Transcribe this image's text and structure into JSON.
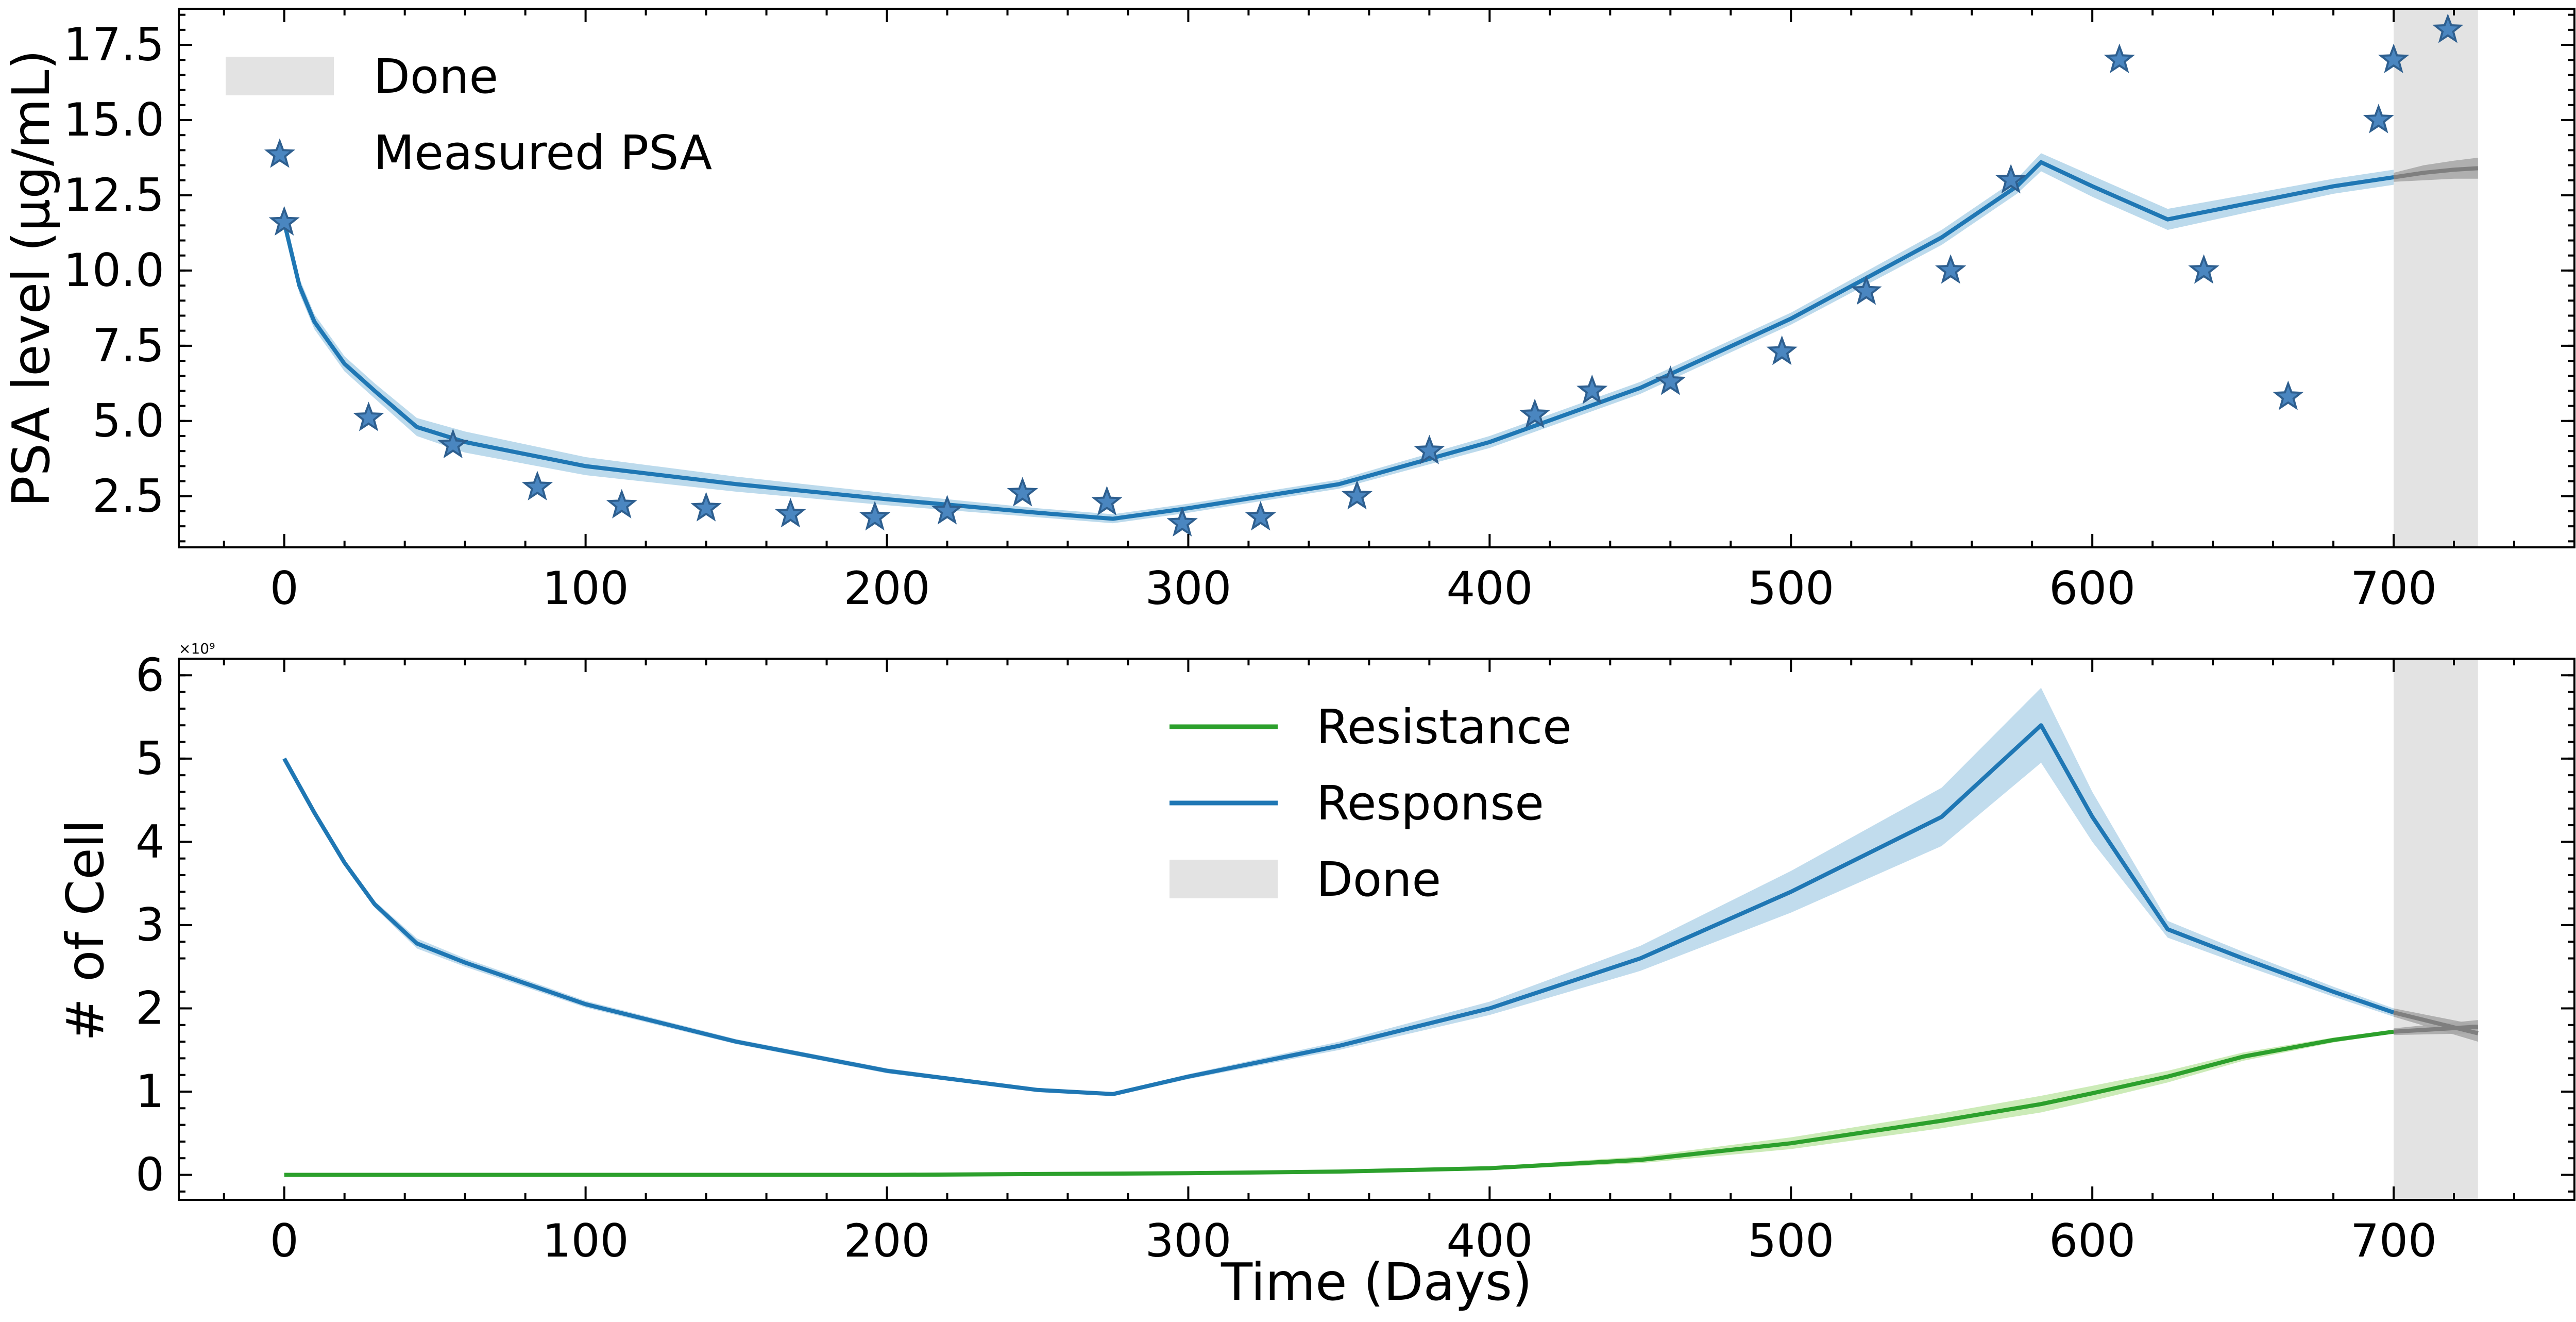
{
  "colors": {
    "response": "#1f77b4",
    "response_band": "#a6cde6",
    "resistance": "#2ca02c",
    "resistance_band": "#b7e29a",
    "done_span": "#e3e3e3",
    "forecast_line": "#7f7f7f",
    "forecast_band": "#a9a9a9",
    "marker": "#4a86c0"
  },
  "chart_data": [
    {
      "type": "line",
      "ylabel": "PSA level (μg/mL)",
      "xlim": [
        -35,
        760
      ],
      "ylim": [
        0.8,
        18.7
      ],
      "x_ticks": [
        0,
        100,
        200,
        300,
        400,
        500,
        600,
        700
      ],
      "x_tick_labels": [
        "0",
        "100",
        "200",
        "300",
        "400",
        "500",
        "600",
        "700"
      ],
      "y_ticks": [
        2.5,
        5.0,
        7.5,
        10.0,
        12.5,
        15.0,
        17.5
      ],
      "y_tick_labels": [
        "2.5",
        "5.0",
        "7.5",
        "10.0",
        "12.5",
        "15.0",
        "17.5"
      ],
      "legend": {
        "position": "upper left",
        "entries": [
          "Done",
          "Measured PSA"
        ]
      },
      "done_span": [
        700,
        728
      ],
      "fit": {
        "x": [
          0,
          5,
          10,
          20,
          30,
          44,
          60,
          100,
          150,
          200,
          250,
          275,
          300,
          350,
          400,
          450,
          500,
          550,
          575,
          583,
          600,
          625,
          650,
          680,
          700
        ],
        "y": [
          11.6,
          9.5,
          8.3,
          6.9,
          6.0,
          4.8,
          4.3,
          3.5,
          2.9,
          2.4,
          1.95,
          1.75,
          2.1,
          2.9,
          4.3,
          6.1,
          8.4,
          11.1,
          12.8,
          13.6,
          12.8,
          11.7,
          12.2,
          12.8,
          13.1
        ],
        "band_half_width": [
          0.25,
          0.25,
          0.25,
          0.25,
          0.25,
          0.3,
          0.35,
          0.3,
          0.25,
          0.2,
          0.15,
          0.15,
          0.15,
          0.15,
          0.2,
          0.2,
          0.2,
          0.25,
          0.25,
          0.3,
          0.35,
          0.35,
          0.3,
          0.25,
          0.25
        ]
      },
      "forecast": {
        "x": [
          700,
          710,
          720,
          728
        ],
        "y": [
          13.1,
          13.25,
          13.35,
          13.4
        ],
        "band_half_width": [
          0.15,
          0.25,
          0.3,
          0.35
        ]
      },
      "series": [
        {
          "name": "Measured PSA",
          "kind": "scatter",
          "marker": "star",
          "x": [
            0,
            28,
            56,
            84,
            112,
            140,
            168,
            196,
            220,
            245,
            273,
            298,
            324,
            356,
            380,
            415,
            434,
            460,
            497,
            525,
            553,
            573,
            609,
            637,
            665,
            695,
            700,
            718
          ],
          "y": [
            11.6,
            5.1,
            4.2,
            2.8,
            2.2,
            2.1,
            1.9,
            1.8,
            2.0,
            2.6,
            2.3,
            1.6,
            1.8,
            2.5,
            4.0,
            5.2,
            6.0,
            6.3,
            7.3,
            9.3,
            10.0,
            13.0,
            17.0,
            10.0,
            5.8,
            15.0,
            17.0,
            18.0
          ]
        }
      ]
    },
    {
      "type": "line",
      "xlabel": "Time (Days)",
      "ylabel": "# of Cell",
      "y_scale_label": "×10⁹",
      "xlim": [
        -35,
        760
      ],
      "ylim": [
        -0.3,
        6.2
      ],
      "x_ticks": [
        0,
        100,
        200,
        300,
        400,
        500,
        600,
        700
      ],
      "x_tick_labels": [
        "0",
        "100",
        "200",
        "300",
        "400",
        "500",
        "600",
        "700"
      ],
      "y_ticks": [
        0,
        1,
        2,
        3,
        4,
        5,
        6
      ],
      "y_tick_labels": [
        "0",
        "1",
        "2",
        "3",
        "4",
        "5",
        "6"
      ],
      "legend": {
        "position": "upper center",
        "entries": [
          "Resistance",
          "Response",
          "Done"
        ]
      },
      "done_span": [
        700,
        728
      ],
      "series": [
        {
          "name": "Resistance",
          "x": [
            0,
            100,
            200,
            300,
            350,
            400,
            450,
            500,
            550,
            583,
            600,
            625,
            650,
            680,
            700
          ],
          "y": [
            0,
            0,
            0,
            0.02,
            0.04,
            0.08,
            0.18,
            0.38,
            0.65,
            0.85,
            0.98,
            1.18,
            1.42,
            1.62,
            1.72
          ],
          "band_half_width": [
            0,
            0,
            0,
            0.005,
            0.01,
            0.02,
            0.04,
            0.07,
            0.09,
            0.1,
            0.09,
            0.07,
            0.05,
            0.03,
            0.02
          ]
        },
        {
          "name": "Response",
          "x": [
            0,
            10,
            20,
            30,
            44,
            60,
            100,
            150,
            200,
            250,
            275,
            300,
            350,
            400,
            450,
            500,
            550,
            583,
            600,
            625,
            650,
            680,
            700
          ],
          "y": [
            5.0,
            4.35,
            3.75,
            3.25,
            2.78,
            2.55,
            2.05,
            1.6,
            1.25,
            1.02,
            0.97,
            1.18,
            1.55,
            2.0,
            2.6,
            3.4,
            4.3,
            5.4,
            4.3,
            2.95,
            2.6,
            2.2,
            1.95
          ],
          "band_half_width": [
            0,
            0.02,
            0.03,
            0.04,
            0.06,
            0.05,
            0.04,
            0.03,
            0.03,
            0.02,
            0.02,
            0.03,
            0.05,
            0.08,
            0.15,
            0.25,
            0.35,
            0.45,
            0.3,
            0.1,
            0.08,
            0.06,
            0.05
          ]
        }
      ],
      "forecast": [
        {
          "x": [
            700,
            728
          ],
          "y": [
            1.95,
            1.7
          ],
          "band_half_width": [
            0.05,
            0.1
          ]
        },
        {
          "x": [
            700,
            728
          ],
          "y": [
            1.72,
            1.78
          ],
          "band_half_width": [
            0.04,
            0.08
          ]
        }
      ]
    }
  ]
}
